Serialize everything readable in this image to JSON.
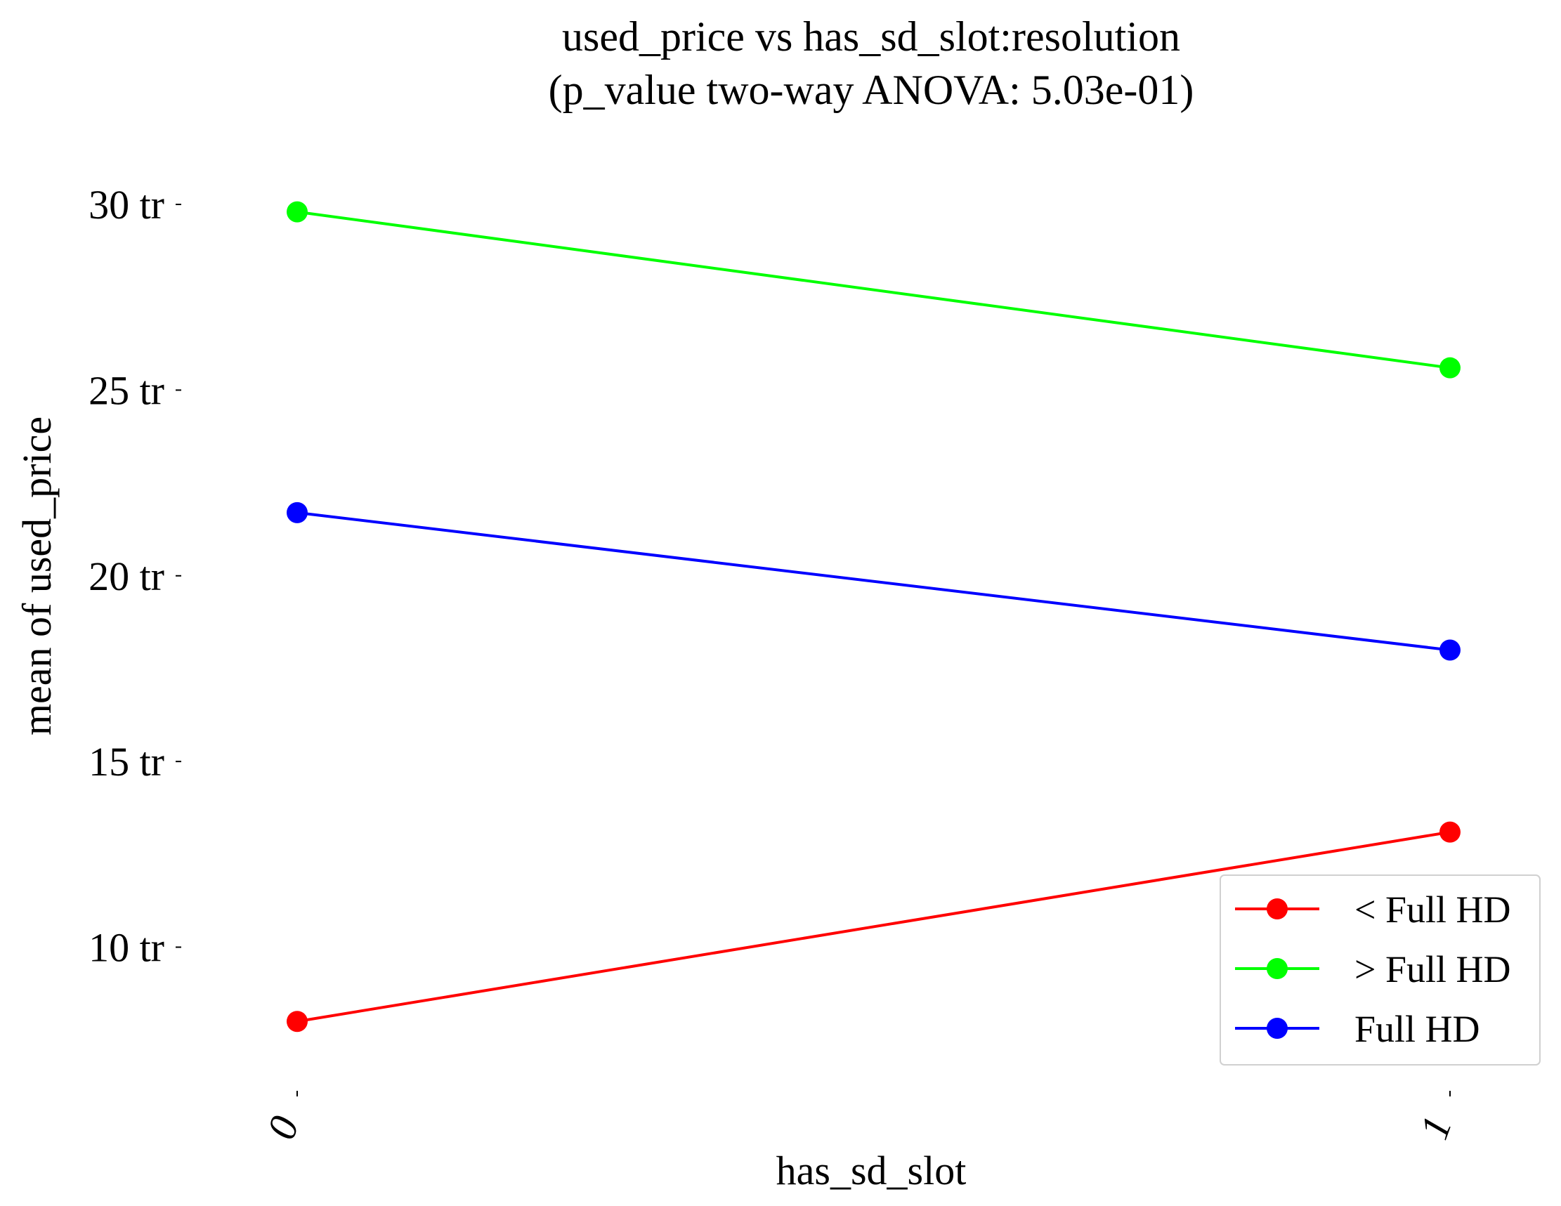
{
  "chart_data": {
    "type": "line",
    "title_line1": "used_price vs has_sd_slot:resolution",
    "title_line2": "(p_value two-way ANOVA: 5.03e-01)",
    "xlabel": "has_sd_slot",
    "ylabel": "mean of used_price",
    "categories": [
      "0",
      "1"
    ],
    "y_ticks": [
      10,
      15,
      20,
      25,
      30
    ],
    "y_tick_labels": [
      "10 tr",
      "15 tr",
      "20 tr",
      "25 tr",
      "30 tr"
    ],
    "ylim": [
      6.0,
      32.1
    ],
    "grid": false,
    "legend_position": "bottom-right",
    "series": [
      {
        "name": "< Full HD",
        "color": "#ff0000",
        "values": [
          8.0,
          13.1
        ]
      },
      {
        "name": "> Full HD",
        "color": "#00ff00",
        "values": [
          29.8,
          25.6
        ]
      },
      {
        "name": "Full HD",
        "color": "#0000ff",
        "values": [
          21.7,
          18.0
        ]
      }
    ]
  }
}
